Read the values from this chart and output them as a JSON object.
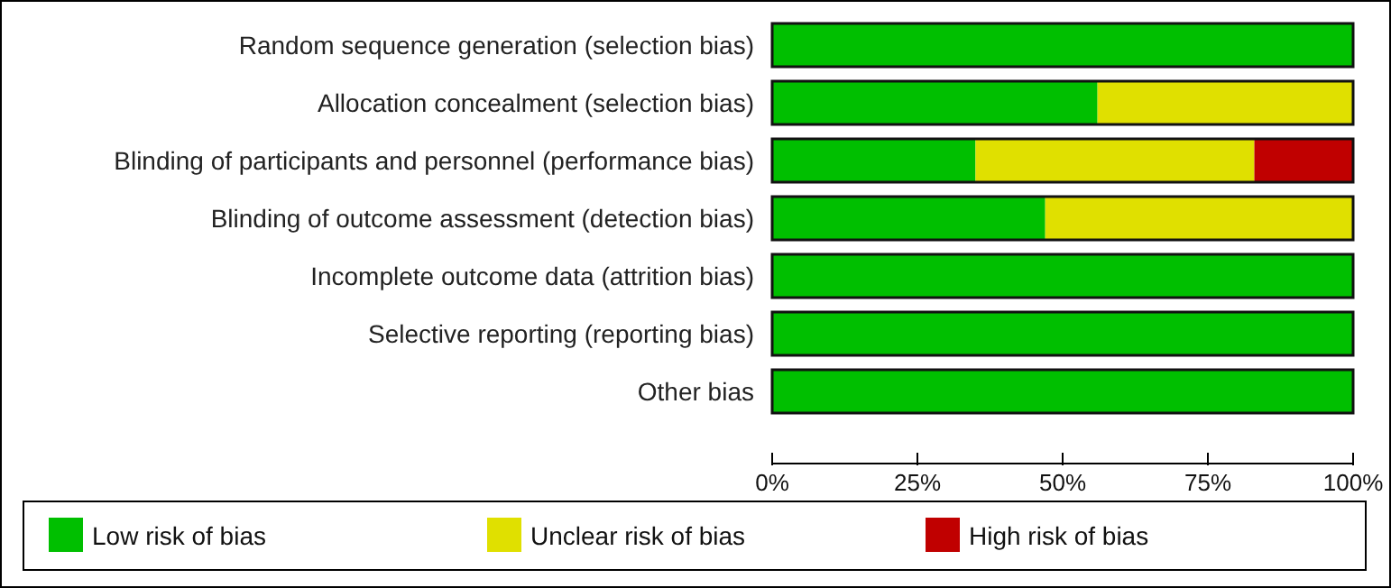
{
  "chart_data": {
    "type": "bar",
    "orientation": "horizontal",
    "stacked": true,
    "categories": [
      "Random sequence generation (selection bias)",
      "Allocation concealment (selection bias)",
      "Blinding of participants and personnel (performance bias)",
      "Blinding of outcome assessment (detection bias)",
      "Incomplete outcome data (attrition bias)",
      "Selective reporting (reporting bias)",
      "Other bias"
    ],
    "series": [
      {
        "name": "Low risk of bias",
        "color": "#00bf00",
        "values": [
          100,
          56,
          35,
          47,
          100,
          100,
          100
        ]
      },
      {
        "name": "Unclear risk of bias",
        "color": "#e0e000",
        "values": [
          0,
          44,
          48,
          53,
          0,
          0,
          0
        ]
      },
      {
        "name": "High risk of bias",
        "color": "#c00000",
        "values": [
          0,
          0,
          17,
          0,
          0,
          0,
          0
        ]
      }
    ],
    "xlim": [
      0,
      100
    ],
    "xticks": [
      {
        "value": 0,
        "label": "0%"
      },
      {
        "value": 25,
        "label": "25%"
      },
      {
        "value": 50,
        "label": "50%"
      },
      {
        "value": 75,
        "label": "75%"
      },
      {
        "value": 100,
        "label": "100%"
      }
    ],
    "grid": false,
    "legend": "bottom"
  }
}
